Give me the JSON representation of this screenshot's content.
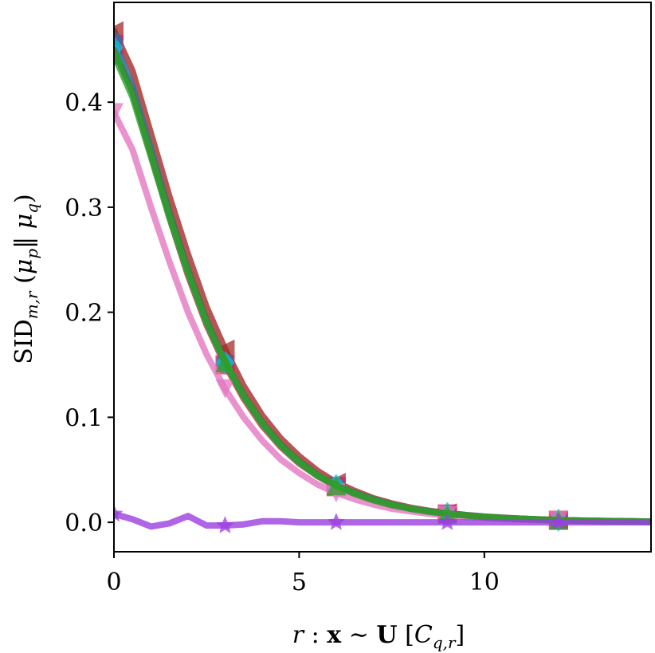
{
  "chart_data": {
    "type": "line",
    "title": "",
    "xlabel": {
      "r": "r",
      "colon": ":",
      "x": "x",
      "sim": "∼",
      "U": "U",
      "lbr": "[",
      "C": "C",
      "C_sub": "q,r",
      "rbr": "]"
    },
    "ylabel": {
      "SID": "SID",
      "SID_sub": "m,r",
      "lpar": "(",
      "mu_p": "μ",
      "mu_p_sub": "p",
      "bars": "‖",
      "mu_q": "μ",
      "mu_q_sub": "q",
      "rpar": ")"
    },
    "xlim": [
      0,
      14.5
    ],
    "ylim": [
      -0.028,
      0.495
    ],
    "xticks": [
      0,
      5,
      10
    ],
    "xtick_labels": [
      "0",
      "5",
      "10"
    ],
    "yticks": [
      0.0,
      0.1,
      0.2,
      0.3,
      0.4
    ],
    "ytick_labels": [
      "0.0",
      "0.1",
      "0.2",
      "0.3",
      "0.4"
    ],
    "grid": false,
    "x": [
      0,
      0.5,
      1,
      1.5,
      2,
      2.5,
      3,
      3.5,
      4,
      4.5,
      5,
      5.5,
      6,
      6.5,
      7,
      7.5,
      8,
      8.5,
      9,
      9.5,
      10,
      10.5,
      11,
      11.5,
      12,
      12.5,
      13,
      13.5,
      14,
      14.5
    ],
    "marker_x": [
      0,
      3,
      6,
      9,
      12
    ],
    "series": [
      {
        "color": "#A52A2A",
        "marker": "triangle-left",
        "values": [
          0.468,
          0.43,
          0.37,
          0.31,
          0.255,
          0.205,
          0.165,
          0.13,
          0.102,
          0.08,
          0.063,
          0.049,
          0.038,
          0.03,
          0.023,
          0.018,
          0.014,
          0.011,
          0.009,
          0.007,
          0.0055,
          0.0044,
          0.0035,
          0.0028,
          0.0022,
          0.0018,
          0.0015,
          0.0012,
          0.001,
          0.0008
        ]
      },
      {
        "color": "#E6194B",
        "marker": "square",
        "values": [
          0.455,
          0.41,
          0.35,
          0.29,
          0.235,
          0.188,
          0.15,
          0.118,
          0.092,
          0.072,
          0.056,
          0.044,
          0.034,
          0.027,
          0.021,
          0.016,
          0.013,
          0.01,
          0.008,
          0.0064,
          0.005,
          0.004,
          0.0032,
          0.0025,
          0.002,
          0.0016,
          0.0013,
          0.001,
          0.0008,
          0.0006
        ]
      },
      {
        "color": "#1F77B4",
        "marker": "circle",
        "values": [
          0.458,
          0.415,
          0.355,
          0.295,
          0.24,
          0.192,
          0.153,
          0.121,
          0.095,
          0.074,
          0.058,
          0.045,
          0.035,
          0.028,
          0.022,
          0.017,
          0.013,
          0.0105,
          0.0084,
          0.0067,
          0.0053,
          0.0042,
          0.0034,
          0.0027,
          0.0021,
          0.0017,
          0.0014,
          0.0011,
          0.0009,
          0.0007
        ]
      },
      {
        "color": "#17BECF",
        "marker": "diamond",
        "values": [
          0.452,
          0.41,
          0.352,
          0.292,
          0.238,
          0.19,
          0.152,
          0.12,
          0.094,
          0.073,
          0.057,
          0.045,
          0.035,
          0.028,
          0.022,
          0.017,
          0.013,
          0.0105,
          0.0084,
          0.0067,
          0.0053,
          0.0042,
          0.0034,
          0.0027,
          0.0021,
          0.0017,
          0.0014,
          0.0011,
          0.0009,
          0.0007
        ]
      },
      {
        "color": "#E377C2",
        "marker": "triangle-down",
        "values": [
          0.39,
          0.355,
          0.3,
          0.248,
          0.2,
          0.16,
          0.127,
          0.1,
          0.078,
          0.06,
          0.047,
          0.036,
          0.028,
          0.022,
          0.017,
          0.013,
          0.0105,
          0.0082,
          0.0065,
          0.0051,
          0.004,
          0.0032,
          0.0025,
          0.002,
          0.0016,
          0.0013,
          0.001,
          0.0008,
          0.0006,
          0.0005
        ]
      },
      {
        "color": "#556B2F",
        "marker": "none",
        "values": [
          0.45,
          0.41,
          0.352,
          0.294,
          0.24,
          0.192,
          0.153,
          0.121,
          0.095,
          0.074,
          0.058,
          0.045,
          0.035,
          0.028,
          0.022,
          0.017,
          0.013,
          0.0105,
          0.0084,
          0.0067,
          0.0053,
          0.0042,
          0.0034,
          0.0027,
          0.0021,
          0.0017,
          0.0014,
          0.0011,
          0.0009,
          0.0007
        ]
      },
      {
        "color": "#2CA02C",
        "marker": "triangle-up",
        "values": [
          0.445,
          0.405,
          0.348,
          0.29,
          0.237,
          0.19,
          0.152,
          0.12,
          0.094,
          0.073,
          0.057,
          0.044,
          0.035,
          0.027,
          0.021,
          0.0165,
          0.013,
          0.0102,
          0.0081,
          0.0065,
          0.0051,
          0.0041,
          0.0033,
          0.0026,
          0.0021,
          0.0017,
          0.0013,
          0.0011,
          0.0009,
          0.0007
        ]
      },
      {
        "color": "#9B3FE0",
        "marker": "star",
        "values": [
          0.008,
          0.003,
          -0.004,
          -0.001,
          0.006,
          -0.003,
          -0.003,
          -0.002,
          0.001,
          0.001,
          0.0,
          0.0,
          0.0,
          0.0,
          0.0,
          0.0,
          0.0,
          0.0,
          0.0,
          0.0,
          0.0,
          0.0,
          0.0,
          0.0,
          0.0,
          0.0,
          0.0,
          0.0,
          0.0,
          0.0
        ]
      }
    ]
  }
}
